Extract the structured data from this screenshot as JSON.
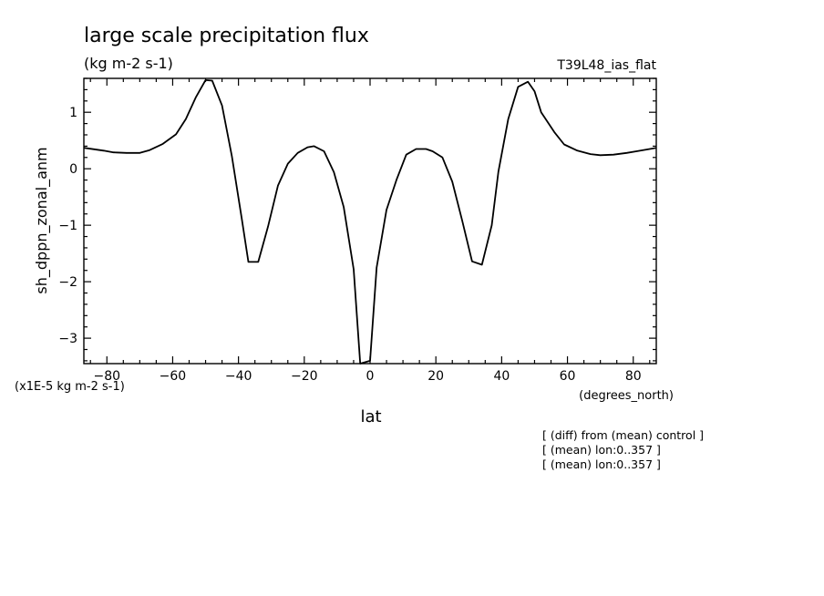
{
  "chart_data": {
    "type": "line",
    "title": "large scale precipitation flux",
    "units": "(kg m-2 s-1)",
    "experiment": "T39L48_ias_flat",
    "ylabel": "sh_dppn_zonal_anm",
    "scale_note": "(x1E-5 kg m-2 s-1)",
    "xlabel": "lat",
    "x_units_label": "(degrees_north)",
    "notes": [
      "[ (diff) from (mean) control ]",
      "[ (mean) lon:0..357 ]",
      "[ (mean) lon:0..357 ]"
    ],
    "xlim": [
      -87,
      87
    ],
    "ylim": [
      -3.45,
      1.6
    ],
    "xticks": [
      -80,
      -60,
      -40,
      -20,
      0,
      20,
      40,
      60,
      80
    ],
    "yticks": [
      -3,
      -2,
      -1,
      0,
      1
    ],
    "xtick_labels": [
      "−80",
      "−60",
      "−40",
      "−20",
      "0",
      "20",
      "40",
      "60",
      "80"
    ],
    "ytick_labels": [
      "−3",
      "−2",
      "−1",
      "0",
      "1"
    ],
    "grid": false,
    "series": [
      {
        "x": [
          -87,
          -81,
          -78,
          -74,
          -70,
          -67,
          -63,
          -59,
          -56,
          -53,
          -50,
          -48,
          -45,
          -42,
          -39,
          -37,
          -34,
          -31,
          -28,
          -25,
          -22,
          -19,
          -17,
          -14,
          -11,
          -8,
          -5,
          -3,
          0,
          2,
          5,
          8,
          11,
          14,
          17,
          19,
          22,
          25,
          28,
          31,
          34,
          37,
          39,
          42,
          45,
          48,
          50,
          52,
          56,
          59,
          63,
          67,
          70,
          74,
          78,
          81,
          84,
          87
        ],
        "y": [
          0.37,
          0.32,
          0.29,
          0.28,
          0.28,
          0.33,
          0.44,
          0.61,
          0.88,
          1.26,
          1.57,
          1.56,
          1.12,
          0.22,
          -0.88,
          -1.65,
          -1.65,
          -1.02,
          -0.3,
          0.09,
          0.28,
          0.38,
          0.4,
          0.31,
          -0.06,
          -0.68,
          -1.78,
          -3.45,
          -3.4,
          -1.75,
          -0.73,
          -0.2,
          0.25,
          0.35,
          0.35,
          0.31,
          0.2,
          -0.23,
          -0.92,
          -1.64,
          -1.7,
          -1.0,
          -0.05,
          0.88,
          1.45,
          1.54,
          1.37,
          1.0,
          0.65,
          0.43,
          0.32,
          0.26,
          0.24,
          0.25,
          0.28,
          0.31,
          0.34,
          0.37
        ]
      }
    ]
  }
}
